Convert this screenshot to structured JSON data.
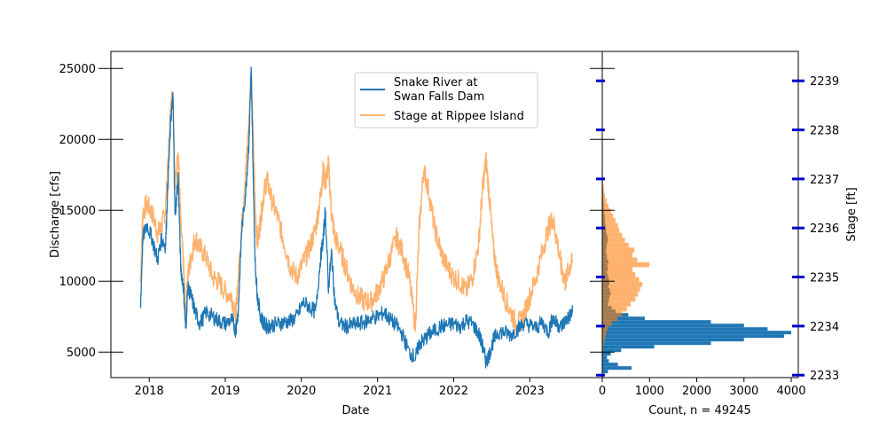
{
  "chart_data": [
    {
      "type": "line",
      "xlabel": "Date",
      "ylabel": "Discharge [cfs]",
      "y2label": "Stage [ft]",
      "xlim": [
        "2017-07-01",
        "2023-12-15"
      ],
      "ylim": [
        3200,
        26200
      ],
      "y2lim": [
        2232.95,
        2239.6
      ],
      "xticks": [
        "2018",
        "2019",
        "2020",
        "2021",
        "2022",
        "2023"
      ],
      "yticks": [
        5000,
        10000,
        15000,
        20000,
        25000
      ],
      "y2ticks": [
        2233,
        2234,
        2235,
        2236,
        2237,
        2238,
        2239
      ],
      "grid": false,
      "legend": "upper-center",
      "series": [
        {
          "name": "Snake River at\nSwan Falls Dam",
          "axis": "left",
          "color": "#1f77b4",
          "x": [
            "2017-11-20",
            "2017-12-01",
            "2017-12-20",
            "2018-01-15",
            "2018-02-10",
            "2018-03-01",
            "2018-03-20",
            "2018-04-01",
            "2018-04-15",
            "2018-04-25",
            "2018-05-05",
            "2018-05-20",
            "2018-06-01",
            "2018-06-15",
            "2018-06-25",
            "2018-07-05",
            "2018-07-20",
            "2018-08-10",
            "2018-09-01",
            "2018-10-01",
            "2018-11-01",
            "2018-12-01",
            "2019-01-01",
            "2019-02-01",
            "2019-02-20",
            "2019-03-05",
            "2019-03-20",
            "2019-04-10",
            "2019-04-25",
            "2019-05-05",
            "2019-05-15",
            "2019-05-25",
            "2019-06-05",
            "2019-06-20",
            "2019-07-05",
            "2019-07-20",
            "2019-08-10",
            "2019-09-10",
            "2019-10-10",
            "2019-11-10",
            "2019-12-10",
            "2020-01-10",
            "2020-02-10",
            "2020-03-10",
            "2020-04-01",
            "2020-04-15",
            "2020-04-25",
            "2020-05-10",
            "2020-05-25",
            "2020-06-10",
            "2020-07-01",
            "2020-08-01",
            "2020-09-01",
            "2020-10-01",
            "2020-11-01",
            "2020-12-01",
            "2021-01-01",
            "2021-02-01",
            "2021-03-01",
            "2021-04-01",
            "2021-05-01",
            "2021-06-01",
            "2021-07-01",
            "2021-07-20",
            "2021-08-10",
            "2021-09-01",
            "2021-10-01",
            "2021-11-01",
            "2021-12-01",
            "2022-01-01",
            "2022-02-01",
            "2022-03-01",
            "2022-04-01",
            "2022-05-01",
            "2022-05-20",
            "2022-06-05",
            "2022-06-20",
            "2022-07-10",
            "2022-08-01",
            "2022-09-01",
            "2022-10-01",
            "2022-11-01",
            "2022-12-01",
            "2023-01-01",
            "2023-02-01",
            "2023-03-01",
            "2023-04-01",
            "2023-04-20",
            "2023-05-10",
            "2023-06-01",
            "2023-06-20",
            "2023-07-10",
            "2023-07-25"
          ],
          "values": [
            8000,
            13000,
            14000,
            13000,
            11500,
            13000,
            12500,
            17000,
            21500,
            23000,
            14500,
            17500,
            11000,
            9500,
            6500,
            9500,
            9000,
            7800,
            7000,
            7800,
            7500,
            7200,
            7000,
            7300,
            6500,
            8000,
            13500,
            16500,
            20000,
            25000,
            17500,
            11000,
            8800,
            7500,
            7000,
            6800,
            6900,
            7000,
            7100,
            7200,
            7500,
            8500,
            8200,
            7800,
            11500,
            13000,
            15000,
            9500,
            12000,
            8500,
            7000,
            6800,
            6900,
            7000,
            7100,
            7400,
            7500,
            7800,
            7300,
            6900,
            6200,
            5000,
            4600,
            5600,
            5800,
            6200,
            6500,
            6800,
            6900,
            7000,
            6800,
            7200,
            7000,
            6300,
            5400,
            4300,
            4800,
            5800,
            6400,
            6400,
            6200,
            6600,
            7000,
            6900,
            6700,
            7100,
            6400,
            7400,
            7000,
            6800,
            7200,
            7500,
            7800
          ]
        },
        {
          "name": "Stage at Rippee Island",
          "axis": "right",
          "color": "#ff7f0e",
          "x": [
            "2017-11-20",
            "2017-12-01",
            "2017-12-20",
            "2018-01-15",
            "2018-02-10",
            "2018-03-01",
            "2018-03-20",
            "2018-04-01",
            "2018-04-15",
            "2018-04-25",
            "2018-05-05",
            "2018-05-20",
            "2018-06-01",
            "2018-06-15",
            "2018-06-25",
            "2018-07-05",
            "2018-07-20",
            "2018-08-10",
            "2018-09-01",
            "2018-10-01",
            "2018-11-01",
            "2018-12-01",
            "2019-01-01",
            "2019-02-01",
            "2019-02-20",
            "2019-03-05",
            "2019-03-20",
            "2019-04-10",
            "2019-04-25",
            "2019-05-05",
            "2019-05-15",
            "2019-05-25",
            "2019-06-05",
            "2019-06-20",
            "2019-07-05",
            "2019-07-20",
            "2019-08-10",
            "2019-09-10",
            "2019-10-10",
            "2019-11-10",
            "2019-12-10",
            "2020-01-10",
            "2020-02-10",
            "2020-03-10",
            "2020-04-01",
            "2020-04-15",
            "2020-04-25",
            "2020-05-10",
            "2020-05-25",
            "2020-06-10",
            "2020-07-01",
            "2020-08-01",
            "2020-09-01",
            "2020-10-01",
            "2020-11-01",
            "2020-12-01",
            "2021-01-01",
            "2021-02-01",
            "2021-03-01",
            "2021-04-01",
            "2021-05-01",
            "2021-06-01",
            "2021-07-01",
            "2021-07-20",
            "2021-08-10",
            "2021-09-01",
            "2021-10-01",
            "2021-11-01",
            "2021-12-01",
            "2022-01-01",
            "2022-02-01",
            "2022-03-01",
            "2022-04-01",
            "2022-05-01",
            "2022-05-20",
            "2022-06-05",
            "2022-06-20",
            "2022-07-10",
            "2022-08-01",
            "2022-09-01",
            "2022-10-01",
            "2022-11-01",
            "2022-12-01",
            "2023-01-01",
            "2023-02-01",
            "2023-03-01",
            "2023-04-01",
            "2023-04-20",
            "2023-05-10",
            "2023-06-01",
            "2023-06-20",
            "2023-07-10",
            "2023-07-25"
          ],
          "values": [
            2234.9,
            2236.3,
            2236.5,
            2236.3,
            2235.9,
            2236.0,
            2236.4,
            2237.3,
            2238.5,
            2238.8,
            2236.8,
            2237.6,
            2236.1,
            2235.2,
            2234.2,
            2235.0,
            2235.4,
            2235.8,
            2235.6,
            2235.4,
            2235.0,
            2234.9,
            2234.7,
            2234.6,
            2234.2,
            2235.0,
            2236.0,
            2237.2,
            2238.2,
            2239.2,
            2237.8,
            2236.3,
            2235.7,
            2236.2,
            2236.7,
            2237.0,
            2236.6,
            2236.2,
            2235.7,
            2235.2,
            2235.0,
            2235.3,
            2235.6,
            2236.0,
            2236.6,
            2237.2,
            2236.9,
            2237.3,
            2236.3,
            2235.8,
            2235.6,
            2235.2,
            2234.8,
            2234.6,
            2234.5,
            2234.5,
            2234.7,
            2235.0,
            2235.4,
            2235.8,
            2235.5,
            2235.0,
            2234.0,
            2236.0,
            2237.2,
            2236.8,
            2236.0,
            2235.5,
            2235.2,
            2235.0,
            2234.9,
            2234.7,
            2235.0,
            2235.7,
            2236.8,
            2237.4,
            2236.7,
            2235.6,
            2235.0,
            2234.6,
            2234.3,
            2234.0,
            2234.2,
            2234.6,
            2235.0,
            2235.5,
            2236.0,
            2236.2,
            2235.8,
            2235.2,
            2234.9,
            2235.2,
            2235.3
          ]
        }
      ]
    },
    {
      "type": "bar",
      "orientation": "horizontal",
      "xlabel": "Count, n = 49245",
      "xlim": [
        0,
        4150
      ],
      "xticks": [
        0,
        1000,
        2000,
        3000,
        4000
      ],
      "series": [
        {
          "name": "Snake River at Swan Falls Dam",
          "color": "#1f77b4",
          "bin_start": 3500,
          "bin_width": 250,
          "values": [
            120,
            620,
            330,
            140,
            100,
            180,
            400,
            1100,
            2300,
            3000,
            3850,
            4000,
            3500,
            3000,
            2300,
            900,
            550,
            280,
            200,
            120,
            140,
            150,
            180,
            160,
            130,
            150,
            140,
            120,
            100,
            120,
            110,
            130,
            100,
            90,
            80,
            90,
            100,
            120,
            110,
            90,
            80,
            70,
            60,
            60,
            50,
            40,
            30,
            30,
            25,
            20,
            20,
            15,
            10,
            10,
            10,
            10,
            10,
            5,
            5,
            5,
            5,
            5,
            5,
            5,
            5,
            5,
            5,
            5,
            5
          ]
        },
        {
          "name": "Stage at Rippee Island",
          "color": "#ff7f0e",
          "bin_start": 2233.0,
          "bin_width": 0.1,
          "values": [
            0,
            0,
            0,
            0,
            0,
            20,
            40,
            60,
            80,
            120,
            200,
            320,
            420,
            520,
            600,
            700,
            750,
            800,
            850,
            780,
            700,
            640,
            1000,
            740,
            640,
            680,
            560,
            480,
            420,
            360,
            330,
            280,
            230,
            180,
            130,
            90,
            60,
            40,
            30,
            20,
            15,
            10,
            8,
            6,
            5,
            4,
            3,
            2,
            2,
            1,
            1,
            1,
            1,
            1,
            1,
            1,
            1,
            1,
            1,
            1,
            1,
            1,
            1,
            1,
            1,
            1,
            1
          ]
        }
      ]
    }
  ]
}
